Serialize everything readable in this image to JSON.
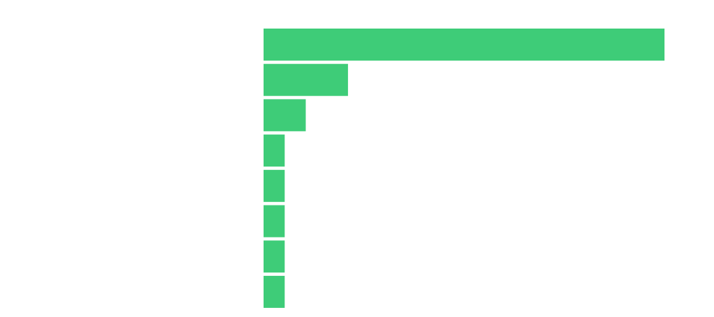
{
  "chart_data": {
    "type": "bar",
    "orientation": "horizontal",
    "title": "",
    "xlabel": "",
    "ylabel": "",
    "categories": [
      "",
      "",
      "",
      "",
      "",
      "",
      "",
      ""
    ],
    "values": [
      19,
      4,
      2,
      1,
      1,
      1,
      1,
      1
    ],
    "xlim": [
      0,
      19
    ],
    "grid": false,
    "legend": "none",
    "bar_color": "#3ecc78"
  }
}
